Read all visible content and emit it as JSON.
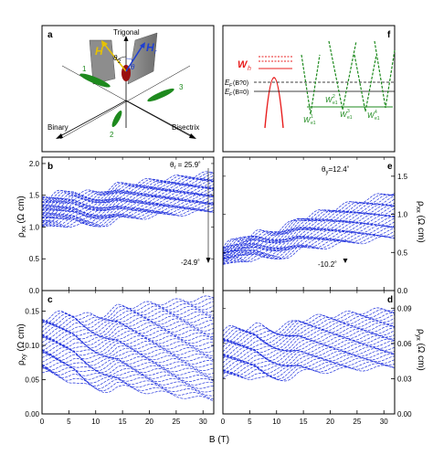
{
  "chart_data": [
    {
      "panel": "a",
      "type": "diagram",
      "axis_labels": {
        "trigonal": "Trigonal",
        "binary": "Binary",
        "bisectrix": "Bisectrix"
      },
      "field_labels": {
        "H": "H",
        "Hprime": "H",
        "Hprime_sub": "r"
      },
      "angle_labels": {
        "theta2": "θ",
        "theta2_sub": "2",
        "theta": "θ"
      },
      "pocket_labels": [
        "1",
        "2",
        "3"
      ],
      "colors": {
        "electron": "#1e8a1e",
        "hole": "#c81414",
        "H": "#e6c200",
        "Hprime": "#1f3fd1"
      }
    },
    {
      "panel": "f",
      "type": "diagram",
      "labels": {
        "wh": "W",
        "wh_sub": "h",
        "ef_b": "E",
        "ef_b_sub": "F",
        "ef_b_rest": "(B?0)",
        "ef_0": "E",
        "ef_0_sub": "F",
        "ef_0_rest": "(B=0)",
        "w1": "W",
        "w1_sub": "e1",
        "w1_sup": "1",
        "w2": "W",
        "w2_sub": "e1",
        "w2_sup": "2",
        "w3": "W",
        "w3_sub": "e1",
        "w3_sup": "3",
        "w4": "W",
        "w4_sub": "e1",
        "w4_sup": "4"
      },
      "colors": {
        "hole_band": "#e81c1c",
        "electron_band": "#1e8a1e"
      }
    },
    {
      "panel": "b",
      "type": "line",
      "ylabel": "ρ",
      "ylabel_sub": "xx",
      "ylabel_unit": " (Ω cm)",
      "xlim": [
        0,
        32
      ],
      "ylim": [
        0.0,
        2.1
      ],
      "yticks": [
        "0.0",
        "0.5",
        "1.0",
        "1.5",
        "2.0"
      ],
      "annotations": {
        "top": "θ",
        "top_sub": "r",
        "top_rest": " = 25.9˚",
        "bottom": "-24.9˚"
      },
      "series_count": 34,
      "angle_range": [
        -24.9,
        25.9
      ],
      "zero_field_range": [
        1.0,
        1.45
      ],
      "high_field_range": [
        1.25,
        1.85
      ],
      "color": "#2233dd"
    },
    {
      "panel": "c",
      "type": "line",
      "ylabel": "ρ",
      "ylabel_sub": "xy",
      "ylabel_unit": " (Ω cm)",
      "xlim": [
        0,
        32
      ],
      "ylim": [
        0.0,
        0.18
      ],
      "yticks": [
        "0.00",
        "0.05",
        "0.10",
        "0.15"
      ],
      "series_count": 34,
      "zero_field_range": [
        0.06,
        0.14
      ],
      "high_field_range": [
        0.02,
        0.17
      ],
      "color": "#2233dd"
    },
    {
      "panel": "e",
      "type": "line",
      "ylabel": "ρ",
      "ylabel_sub": "xx",
      "ylabel_unit": " (Ω cm)",
      "xlim": [
        0,
        32
      ],
      "ylim": [
        0.0,
        1.75
      ],
      "yticks": [
        "0.0",
        "0.5",
        "1.0",
        "1.5"
      ],
      "annotations": {
        "top": "θ",
        "top_sub": "y",
        "top_rest": "=12.4˚",
        "bottom": "-10.2˚"
      },
      "series_count": 28,
      "angle_range": [
        -10.2,
        12.4
      ],
      "zero_field_range": [
        0.35,
        0.55
      ],
      "high_field_range": [
        0.7,
        1.3
      ],
      "color": "#2233dd"
    },
    {
      "panel": "d",
      "type": "line",
      "ylabel": "ρ",
      "ylabel_sub": "yx",
      "ylabel_unit": " (Ω cm)",
      "xlim": [
        0,
        32
      ],
      "ylim": [
        0.0,
        0.105
      ],
      "yticks": [
        "0.00",
        "0.03",
        "0.06",
        "0.09"
      ],
      "series_count": 28,
      "zero_field_range": [
        0.03,
        0.07
      ],
      "high_field_range": [
        0.04,
        0.09
      ],
      "color": "#2233dd"
    }
  ],
  "panel_letters": {
    "a": "a",
    "b": "b",
    "c": "c",
    "d": "d",
    "e": "e",
    "f": "f"
  },
  "x_axis": {
    "label": "B (T)",
    "ticks": [
      "0",
      "5",
      "10",
      "15",
      "20",
      "25",
      "30"
    ],
    "tick_values": [
      0,
      5,
      10,
      15,
      20,
      25,
      30
    ]
  }
}
